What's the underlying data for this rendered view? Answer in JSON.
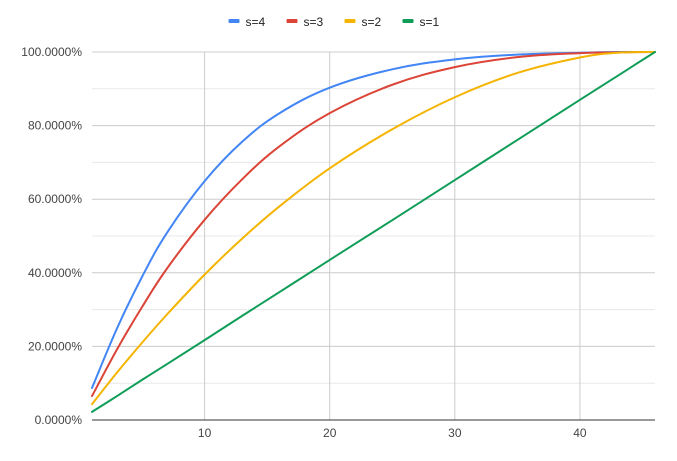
{
  "chart_data": {
    "type": "line",
    "title": "",
    "xlabel": "",
    "ylabel": "",
    "xlim": [
      1,
      46
    ],
    "ylim": [
      0,
      100
    ],
    "x_ticks": [
      10,
      20,
      30,
      40
    ],
    "y_ticks": [
      0,
      20,
      40,
      60,
      80,
      100
    ],
    "x_tick_labels": [
      "10",
      "20",
      "30",
      "40"
    ],
    "y_tick_labels": [
      "0.0000%",
      "20.0000%",
      "40.0000%",
      "60.0000%",
      "80.0000%",
      "100.0000%"
    ],
    "grid": true,
    "legend_position": "top",
    "x": [
      1,
      3,
      5,
      7,
      10,
      13,
      16,
      20,
      25,
      30,
      35,
      40,
      43,
      46
    ],
    "series": [
      {
        "name": "s=4",
        "color": "#4285f4",
        "values": [
          8.7,
          24.9,
          38.9,
          50.9,
          64.9,
          75.6,
          83.4,
          90.3,
          95.3,
          98.0,
          99.3,
          99.8,
          100.0,
          100.0
        ]
      },
      {
        "name": "s=3",
        "color": "#db4437",
        "values": [
          6.5,
          19.2,
          30.7,
          41.2,
          54.4,
          65.4,
          74.4,
          83.4,
          91.1,
          95.9,
          98.6,
          99.7,
          99.9,
          100.0
        ]
      },
      {
        "name": "s=2",
        "color": "#f4b400",
        "values": [
          4.3,
          12.9,
          21.0,
          28.7,
          39.5,
          49.3,
          58.1,
          68.4,
          79.0,
          87.7,
          94.3,
          98.5,
          99.8,
          100.0
        ]
      },
      {
        "name": "s=1",
        "color": "#0f9d58",
        "values": [
          2.2,
          6.5,
          10.9,
          15.2,
          21.7,
          28.3,
          34.8,
          43.5,
          54.3,
          65.2,
          76.1,
          87.0,
          93.5,
          100.0
        ]
      }
    ]
  }
}
